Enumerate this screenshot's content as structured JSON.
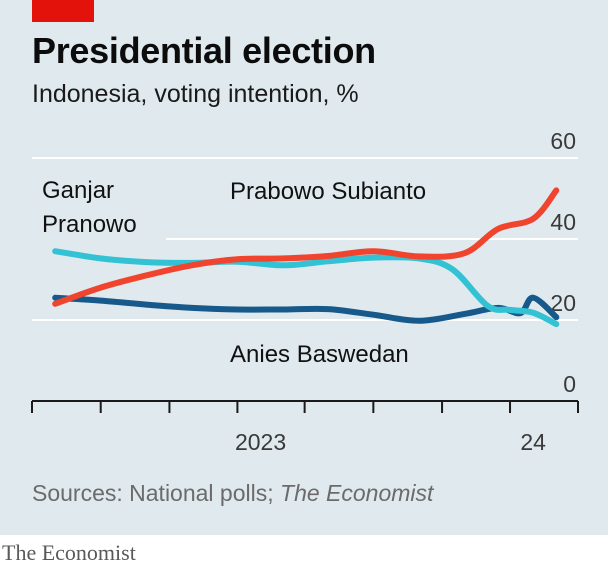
{
  "header": {
    "title": "Presidential election",
    "subtitle": "Indonesia, voting intention, %"
  },
  "footer": {
    "source_prefix": "Sources: National polls; ",
    "source_italic": "The Economist",
    "brand": "The Economist"
  },
  "colors": {
    "background": "#dfe9ee",
    "accent": "#e3120b",
    "prabowo": "#f0442e",
    "ganjar": "#33c2d3",
    "anies": "#17598a",
    "grid": "#ffffff"
  },
  "chart_data": {
    "type": "line",
    "title": "Presidential election",
    "subtitle": "Indonesia, voting intention, %",
    "xlim": [
      "2022-03-01",
      "2024-03-01"
    ],
    "ylim": [
      0,
      60
    ],
    "y_ticks": [
      0,
      20,
      40,
      60
    ],
    "y_axis_side": "right",
    "x_tick_labels": [
      {
        "label": "2023",
        "date": "2023-01-01"
      },
      {
        "label": "24",
        "date": "2024-01-01"
      }
    ],
    "grid": true,
    "series": [
      {
        "name": "Prabowo Subianto",
        "color": "#f0442e",
        "x": [
          "2022-04-01",
          "2022-06-01",
          "2022-08-01",
          "2022-10-01",
          "2022-12-01",
          "2023-02-01",
          "2023-04-01",
          "2023-06-01",
          "2023-08-01",
          "2023-10-01",
          "2023-11-15",
          "2024-01-01",
          "2024-02-01"
        ],
        "y": [
          24,
          28,
          31,
          33.5,
          35,
          35.2,
          35.8,
          37,
          35.7,
          36.5,
          42.5,
          45,
          52
        ]
      },
      {
        "name": "Ganjar Pranowo",
        "color": "#33c2d3",
        "x": [
          "2022-04-01",
          "2022-06-01",
          "2022-08-01",
          "2022-10-01",
          "2022-12-01",
          "2023-02-01",
          "2023-04-01",
          "2023-06-01",
          "2023-08-01",
          "2023-09-15",
          "2023-11-01",
          "2023-12-01",
          "2024-01-01",
          "2024-02-01"
        ],
        "y": [
          37,
          35.2,
          34.3,
          34.1,
          34.4,
          33.5,
          34.5,
          35.4,
          35.2,
          32.5,
          23.5,
          22.5,
          21.8,
          19
        ]
      },
      {
        "name": "Anies Baswedan",
        "color": "#17598a",
        "x": [
          "2022-04-01",
          "2022-06-01",
          "2022-08-01",
          "2022-10-01",
          "2022-12-01",
          "2023-02-01",
          "2023-04-01",
          "2023-06-01",
          "2023-08-01",
          "2023-10-01",
          "2023-11-15",
          "2023-12-15",
          "2024-01-01",
          "2024-02-01"
        ],
        "y": [
          25.5,
          24.8,
          23.8,
          23,
          22.6,
          22.6,
          22.7,
          21.3,
          19.8,
          21.5,
          23,
          21.7,
          25.5,
          20.7
        ]
      }
    ]
  }
}
